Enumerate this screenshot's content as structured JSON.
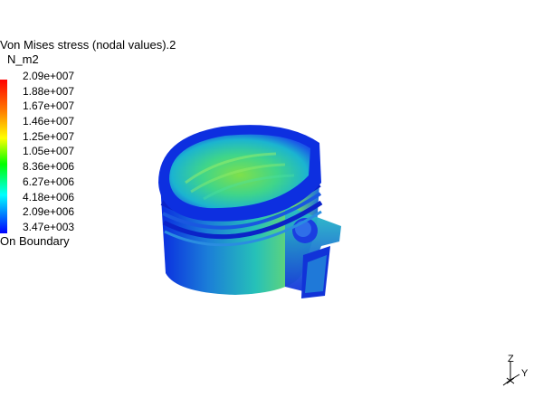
{
  "legend": {
    "title": "Von Mises stress (nodal values).2",
    "unit": "N_m2",
    "values": [
      "2.09e+007",
      "1.88e+007",
      "1.67e+007",
      "1.46e+007",
      "1.25e+007",
      "1.05e+007",
      "8.36e+006",
      "6.27e+006",
      "4.18e+006",
      "2.09e+006",
      "3.47e+003"
    ],
    "footer": "On Boundary",
    "colors": [
      "#ff0000",
      "#ff7a00",
      "#ffff00",
      "#00ff00",
      "#00ffff",
      "#0000ff"
    ]
  },
  "model": {
    "name": "piston-model",
    "colors": {
      "low": "#0a2ce0",
      "mid": "#1bc4c8",
      "high": "#7fe04a"
    }
  },
  "triad": {
    "z": "Z",
    "y": "Y"
  }
}
